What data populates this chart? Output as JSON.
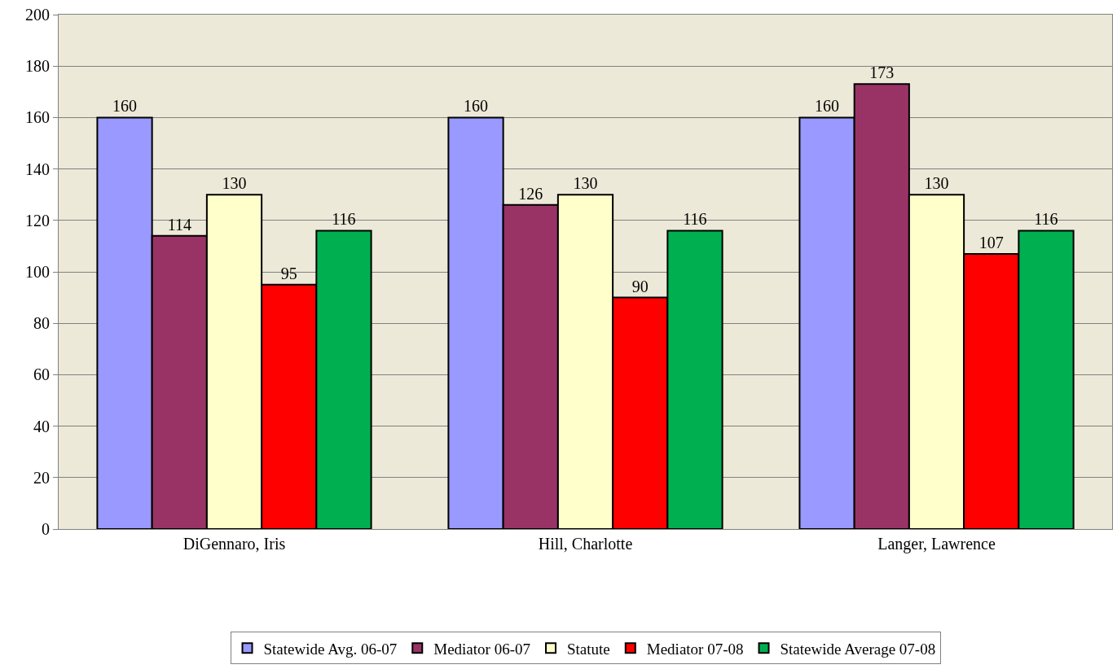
{
  "chart_data": {
    "type": "bar",
    "categories": [
      "DiGennaro, Iris",
      "Hill, Charlotte",
      "Langer, Lawrence"
    ],
    "series": [
      {
        "name": "Statewide Avg. 06-07",
        "color": "#9999ff",
        "values": [
          160,
          160,
          160
        ]
      },
      {
        "name": "Mediator 06-07",
        "color": "#993366",
        "values": [
          114,
          126,
          173
        ]
      },
      {
        "name": "Statute",
        "color": "#ffffcc",
        "values": [
          130,
          130,
          130
        ]
      },
      {
        "name": "Mediator 07-08",
        "color": "#ff0000",
        "values": [
          95,
          90,
          107
        ]
      },
      {
        "name": "Statewide Average 07-08",
        "color": "#00b050",
        "values": [
          116,
          116,
          116
        ]
      }
    ],
    "ylim": [
      0,
      200
    ],
    "yticks": [
      0,
      20,
      40,
      60,
      80,
      100,
      120,
      140,
      160,
      180,
      200
    ],
    "grid": "y",
    "legend": "bottom",
    "data_labels": true
  }
}
